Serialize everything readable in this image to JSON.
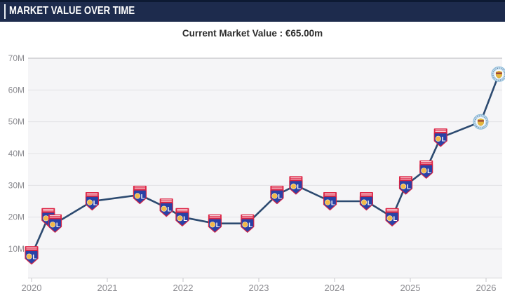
{
  "header": {
    "title": "MARKET VALUE OVER TIME"
  },
  "subtitle": {
    "text": "Current Market Value : €65.00m"
  },
  "colors": {
    "header_bg": "#1d2b4d",
    "header_top_edge": "#0d1a33",
    "line": "#2c4a70",
    "plot_bg": "#f5f5f7",
    "plot_top_border": "#b9b9bd",
    "gridline": "#e2e2e5",
    "axis_line": "#d2d2d6",
    "axis_text": "#8b8b90",
    "ol_red": "#dd2848",
    "ol_blue": "#2941a6",
    "ol_gold": "#f3b94a",
    "city_sky_blue": "#c2def0",
    "city_gold": "#e4b83f"
  },
  "badge_icons": {
    "OL": "olympique-lyonnais-crest-icon",
    "MCI": "manchester-city-crest-icon"
  },
  "chart_data": {
    "type": "line",
    "title": "Current Market Value : €65.00m",
    "xlabel": "",
    "ylabel": "",
    "y_unit": "€ million",
    "grid": "horizontal",
    "legend": "none",
    "xlim": [
      2019.95,
      2026.25
    ],
    "ylim": [
      1,
      73
    ],
    "x_axis": {
      "tick_labels": [
        "2020",
        "2021",
        "2022",
        "2023",
        "2024",
        "2025",
        "2026"
      ],
      "tick_values": [
        2020,
        2021,
        2022,
        2023,
        2024,
        2025,
        2026
      ]
    },
    "y_axis": {
      "tick_labels": [
        "70M",
        "60M",
        "50M",
        "40M",
        "30M",
        "20M",
        "10M"
      ],
      "tick_values": [
        70,
        60,
        50,
        40,
        30,
        20,
        10
      ]
    },
    "series": [
      {
        "name": "market_value",
        "points": [
          {
            "year": 2020.0,
            "value": 8,
            "club": "OL"
          },
          {
            "year": 2020.22,
            "value": 20,
            "club": "OL"
          },
          {
            "year": 2020.31,
            "value": 18,
            "club": "OL"
          },
          {
            "year": 2020.8,
            "value": 25,
            "club": "OL"
          },
          {
            "year": 2021.43,
            "value": 27,
            "club": "OL"
          },
          {
            "year": 2021.78,
            "value": 23,
            "club": "OL"
          },
          {
            "year": 2021.99,
            "value": 20,
            "club": "OL"
          },
          {
            "year": 2022.42,
            "value": 18,
            "club": "OL"
          },
          {
            "year": 2022.85,
            "value": 18,
            "club": "OL"
          },
          {
            "year": 2023.24,
            "value": 27,
            "club": "OL"
          },
          {
            "year": 2023.49,
            "value": 30,
            "club": "OL"
          },
          {
            "year": 2023.94,
            "value": 25,
            "club": "OL"
          },
          {
            "year": 2024.42,
            "value": 25,
            "club": "OL"
          },
          {
            "year": 2024.76,
            "value": 20,
            "club": "OL"
          },
          {
            "year": 2024.94,
            "value": 30,
            "club": "OL"
          },
          {
            "year": 2025.21,
            "value": 35,
            "club": "OL"
          },
          {
            "year": 2025.4,
            "value": 45,
            "club": "OL"
          },
          {
            "year": 2025.93,
            "value": 50,
            "club": "MCI"
          },
          {
            "year": 2026.17,
            "value": 65,
            "club": "MCI"
          }
        ]
      }
    ]
  }
}
